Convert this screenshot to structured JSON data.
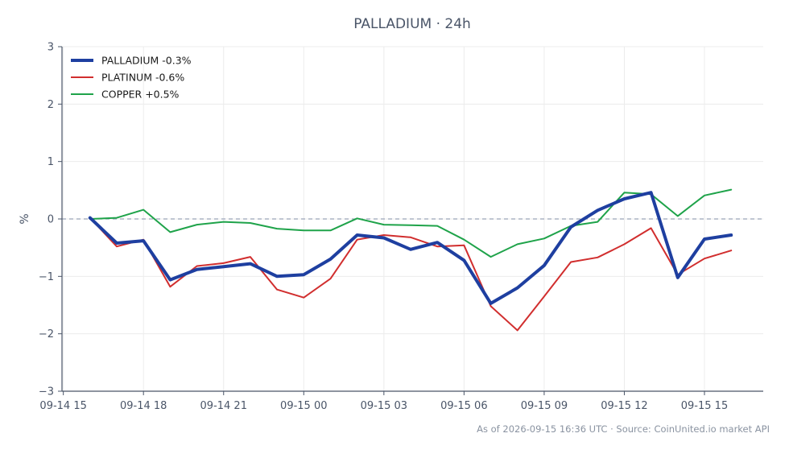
{
  "chart_data": {
    "type": "line",
    "title": "PALLADIUM · 24h",
    "ylabel": "%",
    "xlabel": "",
    "ylim": [
      -3,
      3
    ],
    "yticks": [
      3,
      2,
      1,
      0,
      -1,
      -2,
      -3
    ],
    "ytick_labels": [
      "3",
      "2",
      "1",
      "0",
      "−1",
      "−2",
      "−3"
    ],
    "x_tick_labels": [
      "09-14 15",
      "09-14 18",
      "09-14 21",
      "09-15 00",
      "09-15 03",
      "09-15 06",
      "09-15 09",
      "09-15 12",
      "09-15 15"
    ],
    "x_tick_hours": [
      15,
      18,
      21,
      24,
      27,
      30,
      33,
      36,
      39
    ],
    "x_range_hours": [
      14.95,
      41.2
    ],
    "x_hours": [
      16,
      17,
      18,
      19,
      20,
      21,
      22,
      23,
      24,
      25,
      26,
      27,
      28,
      29,
      30,
      31,
      32,
      33,
      34,
      35,
      36,
      37,
      38,
      39,
      40
    ],
    "grid": true,
    "zero_line": true,
    "legend_position": "top-left",
    "series": [
      {
        "name": "PALLADIUM -0.3%",
        "color": "#1e3fa0",
        "width": 4,
        "values": [
          0.02,
          -0.42,
          -0.38,
          -1.06,
          -0.88,
          -0.83,
          -0.78,
          -1.0,
          -0.97,
          -0.7,
          -0.28,
          -0.33,
          -0.53,
          -0.41,
          -0.72,
          -1.47,
          -1.2,
          -0.81,
          -0.14,
          0.15,
          0.35,
          0.46,
          -1.02,
          -0.35,
          -0.28
        ]
      },
      {
        "name": "PLATINUM -0.6%",
        "color": "#d12e2e",
        "width": 2,
        "values": [
          0.02,
          -0.48,
          -0.36,
          -1.18,
          -0.82,
          -0.77,
          -0.66,
          -1.23,
          -1.37,
          -1.04,
          -0.36,
          -0.28,
          -0.32,
          -0.48,
          -0.46,
          -1.52,
          -1.94,
          -1.35,
          -0.75,
          -0.67,
          -0.44,
          -0.16,
          -0.97,
          -0.69,
          -0.55
        ]
      },
      {
        "name": "COPPER +0.5%",
        "color": "#1fa34a",
        "width": 2,
        "values": [
          0.0,
          0.02,
          0.16,
          -0.23,
          -0.1,
          -0.05,
          -0.07,
          -0.17,
          -0.2,
          -0.2,
          0.01,
          -0.1,
          -0.11,
          -0.12,
          -0.36,
          -0.66,
          -0.44,
          -0.34,
          -0.12,
          -0.05,
          0.46,
          0.43,
          0.05,
          0.41,
          0.51
        ]
      }
    ]
  },
  "footer": {
    "text": "As of 2026-09-15 16:36 UTC · Source: CoinUnited.io market API"
  }
}
